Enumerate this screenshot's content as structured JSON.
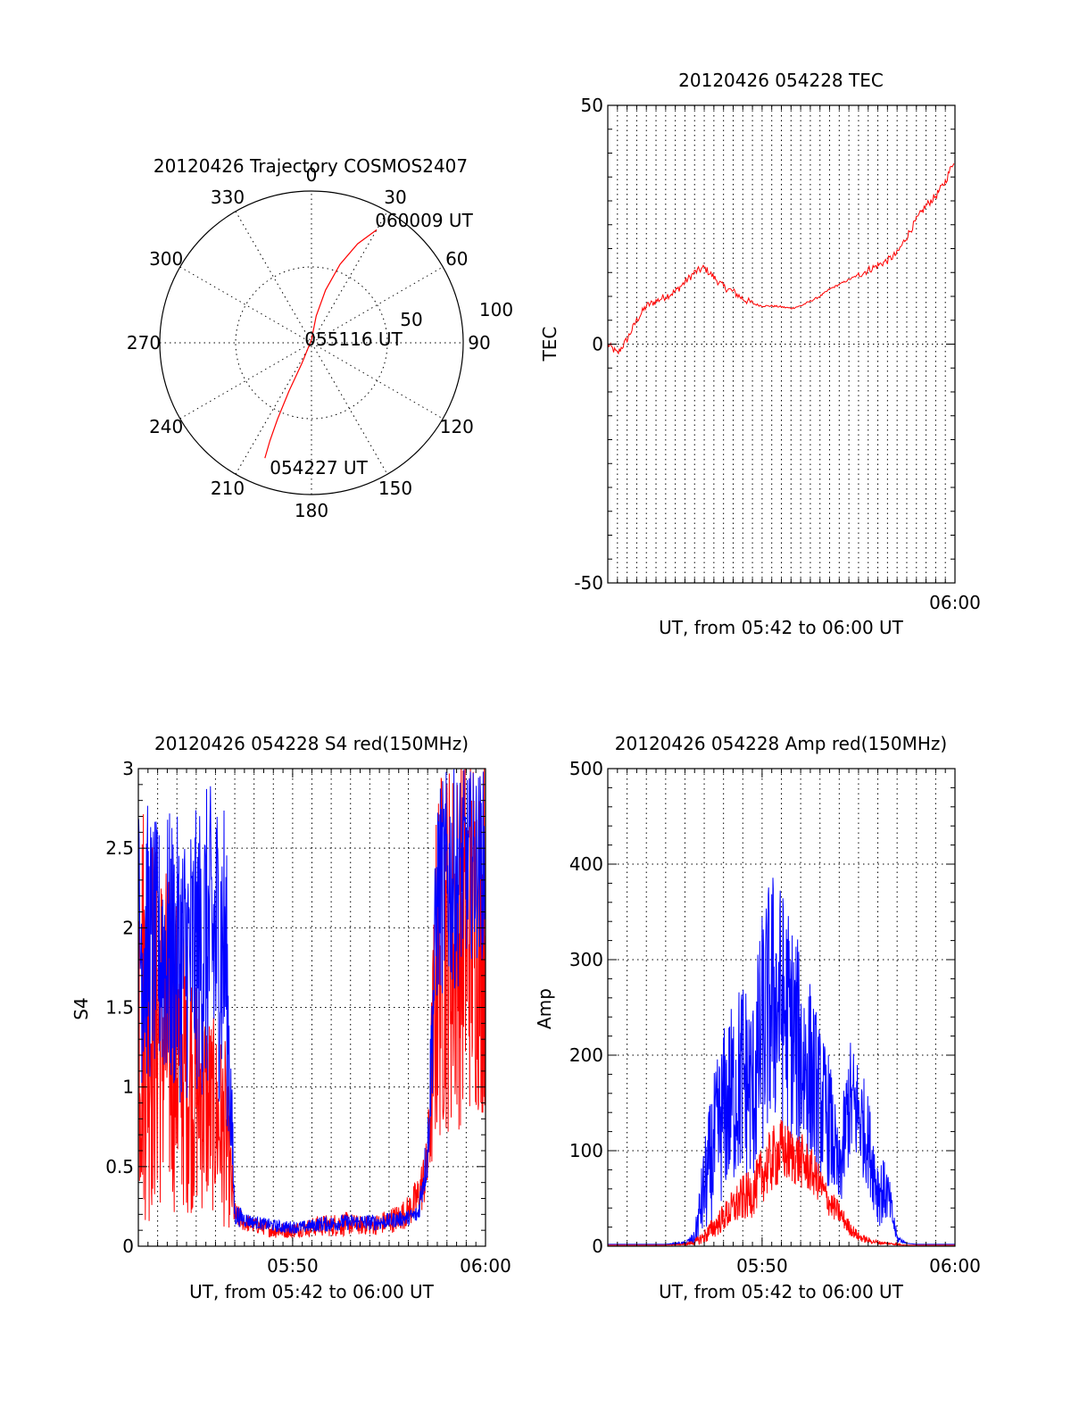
{
  "chart_data": [
    {
      "type": "polar",
      "title": "20120426 Trajectory COSMOS2407",
      "angle_labels": [
        "0",
        "30",
        "60",
        "90",
        "120",
        "150",
        "180",
        "210",
        "240",
        "270",
        "300",
        "330"
      ],
      "radius_labels": [
        "50",
        "100"
      ],
      "rlim": [
        0,
        100
      ],
      "grid": true,
      "colors": {
        "track": "#ff0000"
      },
      "point_labels": [
        {
          "text": "060009 UT",
          "az": 30,
          "el_offset": 85
        },
        {
          "text": "055116 UT",
          "az": 0,
          "el_offset": 0
        },
        {
          "text": "054227 UT",
          "az": 202,
          "el_offset": 80
        }
      ],
      "track": [
        [
          30,
          86
        ],
        [
          25,
          72
        ],
        [
          20,
          55
        ],
        [
          15,
          36
        ],
        [
          10,
          18
        ],
        [
          0,
          2
        ],
        [
          205,
          15
        ],
        [
          205,
          35
        ],
        [
          204,
          55
        ],
        [
          203,
          70
        ],
        [
          202,
          82
        ]
      ]
    },
    {
      "type": "line",
      "title": "20120426 054228 TEC",
      "xlabel": "UT, from 05:42 to 06:00 UT",
      "ylabel": "TEC",
      "xlim": [
        0,
        18
      ],
      "ylim": [
        -50,
        50
      ],
      "x_tick_labels": [
        {
          "x": 18,
          "label": "06:00"
        }
      ],
      "y_ticks": [
        -50,
        0,
        50
      ],
      "grid_x_every": 0.5,
      "colors": {
        "line": "#ff0000"
      },
      "series": [
        {
          "x": [
            0,
            0.5,
            1,
            1.5,
            2,
            2.5,
            3,
            3.5,
            4,
            4.5,
            5,
            5.5,
            6,
            6.5,
            7,
            7.5,
            8,
            8.5,
            9,
            9.5,
            10,
            10.5,
            11,
            11.5,
            12,
            12.5,
            13,
            13.5,
            14,
            14.5,
            15,
            15.5,
            16,
            16.5,
            17,
            17.5,
            18
          ],
          "values": [
            0,
            -2,
            1,
            5,
            8,
            9,
            10,
            11,
            13,
            15,
            16,
            14,
            12,
            11,
            9.5,
            8.5,
            8,
            8,
            7.8,
            7.5,
            8,
            9,
            10,
            11.5,
            12.5,
            13.5,
            14.5,
            15.5,
            16.5,
            17.5,
            19,
            22.5,
            26,
            29,
            31,
            34,
            39
          ]
        }
      ]
    },
    {
      "type": "line",
      "title": "20120426 054228 S4 red(150MHz)",
      "xlabel": "UT, from 05:42 to 06:00 UT",
      "ylabel": "S4",
      "xlim": [
        0,
        18
      ],
      "ylim": [
        0,
        3
      ],
      "x_tick_labels": [
        {
          "x": 8,
          "label": "05:50"
        },
        {
          "x": 18,
          "label": "06:00"
        }
      ],
      "y_ticks": [
        0,
        0.5,
        1,
        1.5,
        2,
        2.5,
        3
      ],
      "y_tick_labels": [
        "0",
        "0.5",
        "1",
        "1.5",
        "2",
        "2.5",
        "3"
      ],
      "grid_x_every": 1,
      "colors": {
        "red": "#ff0000",
        "blue": "#0000ff"
      },
      "series": [
        {
          "color": "red",
          "x": [
            0,
            0.5,
            1,
            1.5,
            2,
            2.5,
            3,
            3.5,
            4,
            4.5,
            5,
            5.5,
            6,
            6.5,
            7,
            7.5,
            8,
            8.5,
            9,
            9.5,
            10,
            10.5,
            11,
            11.5,
            12,
            12.5,
            13,
            13.5,
            14,
            14.5,
            15,
            15.5,
            16,
            16.5,
            17,
            17.5,
            18
          ],
          "values": [
            1.6,
            1.5,
            1.4,
            1.3,
            1.2,
            1.1,
            1.0,
            0.9,
            0.8,
            0.7,
            0.2,
            0.15,
            0.13,
            0.12,
            0.1,
            0.1,
            0.1,
            0.11,
            0.12,
            0.13,
            0.13,
            0.14,
            0.14,
            0.13,
            0.13,
            0.14,
            0.16,
            0.18,
            0.22,
            0.3,
            0.5,
            1.8,
            1.9,
            1.9,
            2.0,
            2.0,
            2.0
          ],
          "spread": [
            1.4,
            1.4,
            1.2,
            1.1,
            1.0,
            0.9,
            0.8,
            0.7,
            0.6,
            0.6,
            0.08,
            0.06,
            0.05,
            0.05,
            0.05,
            0.05,
            0.05,
            0.05,
            0.06,
            0.07,
            0.07,
            0.08,
            0.07,
            0.06,
            0.06,
            0.07,
            0.08,
            0.09,
            0.1,
            0.15,
            0.2,
            1.2,
            1.2,
            1.2,
            1.2,
            1.2,
            1.2
          ]
        },
        {
          "color": "blue",
          "x": [
            0,
            0.5,
            1,
            1.5,
            2,
            2.5,
            3,
            3.5,
            4,
            4.5,
            5,
            5.5,
            6,
            6.5,
            7,
            7.5,
            8,
            8.5,
            9,
            9.5,
            10,
            10.5,
            11,
            11.5,
            12,
            12.5,
            13,
            13.5,
            14,
            14.5,
            15,
            15.5,
            16,
            16.5,
            17,
            17.5,
            18
          ],
          "values": [
            1.9,
            1.9,
            1.85,
            1.85,
            1.8,
            1.8,
            1.85,
            1.9,
            1.9,
            1.9,
            0.2,
            0.17,
            0.15,
            0.14,
            0.13,
            0.12,
            0.12,
            0.12,
            0.13,
            0.14,
            0.14,
            0.15,
            0.15,
            0.15,
            0.15,
            0.15,
            0.16,
            0.17,
            0.18,
            0.2,
            0.6,
            2.2,
            2.3,
            2.3,
            2.4,
            2.4,
            2.4
          ],
          "spread": [
            0.9,
            0.9,
            0.8,
            0.9,
            0.9,
            0.9,
            0.9,
            1.0,
            1.0,
            1.0,
            0.08,
            0.05,
            0.04,
            0.04,
            0.04,
            0.04,
            0.04,
            0.04,
            0.04,
            0.05,
            0.05,
            0.05,
            0.05,
            0.05,
            0.05,
            0.05,
            0.05,
            0.05,
            0.05,
            0.06,
            0.2,
            0.7,
            0.7,
            0.7,
            0.6,
            0.6,
            0.6
          ]
        }
      ]
    },
    {
      "type": "line",
      "title": "20120426 054228 Amp red(150MHz)",
      "xlabel": "UT, from 05:42 to 06:00 UT",
      "ylabel": "Amp",
      "xlim": [
        0,
        18
      ],
      "ylim": [
        0,
        500
      ],
      "x_tick_labels": [
        {
          "x": 8,
          "label": "05:50"
        },
        {
          "x": 18,
          "label": "06:00"
        }
      ],
      "y_ticks": [
        0,
        100,
        200,
        300,
        400,
        500
      ],
      "grid_x_every": 1,
      "colors": {
        "red": "#ff0000",
        "blue": "#0000ff"
      },
      "series": [
        {
          "color": "blue",
          "x": [
            0,
            1,
            2,
            3,
            4,
            4.5,
            5,
            5.5,
            6,
            6.5,
            7,
            7.5,
            8,
            8.5,
            9,
            9.5,
            10,
            10.5,
            11,
            11.5,
            12,
            12.5,
            13,
            13.5,
            14,
            14.5,
            15,
            15.5,
            16,
            17,
            18
          ],
          "values": [
            2,
            2,
            2,
            2,
            3,
            8,
            60,
            100,
            140,
            160,
            180,
            160,
            220,
            260,
            250,
            230,
            200,
            180,
            150,
            130,
            70,
            150,
            140,
            110,
            60,
            55,
            8,
            3,
            2,
            2,
            2
          ],
          "spread": [
            0,
            0,
            0,
            0,
            2,
            8,
            50,
            80,
            90,
            100,
            110,
            100,
            130,
            140,
            130,
            120,
            110,
            100,
            80,
            70,
            40,
            70,
            60,
            50,
            40,
            30,
            5,
            0,
            0,
            0,
            0
          ]
        },
        {
          "color": "red",
          "x": [
            0,
            1,
            2,
            3,
            4,
            4.5,
            5,
            5.5,
            6,
            6.5,
            7,
            7.5,
            8,
            8.5,
            9,
            9.5,
            10,
            10.5,
            11,
            11.5,
            12,
            12.5,
            13,
            13.5,
            14,
            14.5,
            15,
            15.5,
            16,
            17,
            18
          ],
          "values": [
            1,
            1,
            1,
            1,
            2,
            4,
            10,
            20,
            30,
            40,
            50,
            55,
            75,
            90,
            100,
            95,
            90,
            80,
            65,
            45,
            35,
            20,
            10,
            6,
            4,
            3,
            2,
            1,
            1,
            1,
            1
          ],
          "spread": [
            0,
            0,
            0,
            0,
            1,
            3,
            8,
            12,
            15,
            20,
            25,
            25,
            30,
            35,
            35,
            30,
            30,
            25,
            20,
            15,
            12,
            8,
            5,
            3,
            2,
            1,
            1,
            0,
            0,
            0,
            0
          ]
        }
      ]
    }
  ]
}
